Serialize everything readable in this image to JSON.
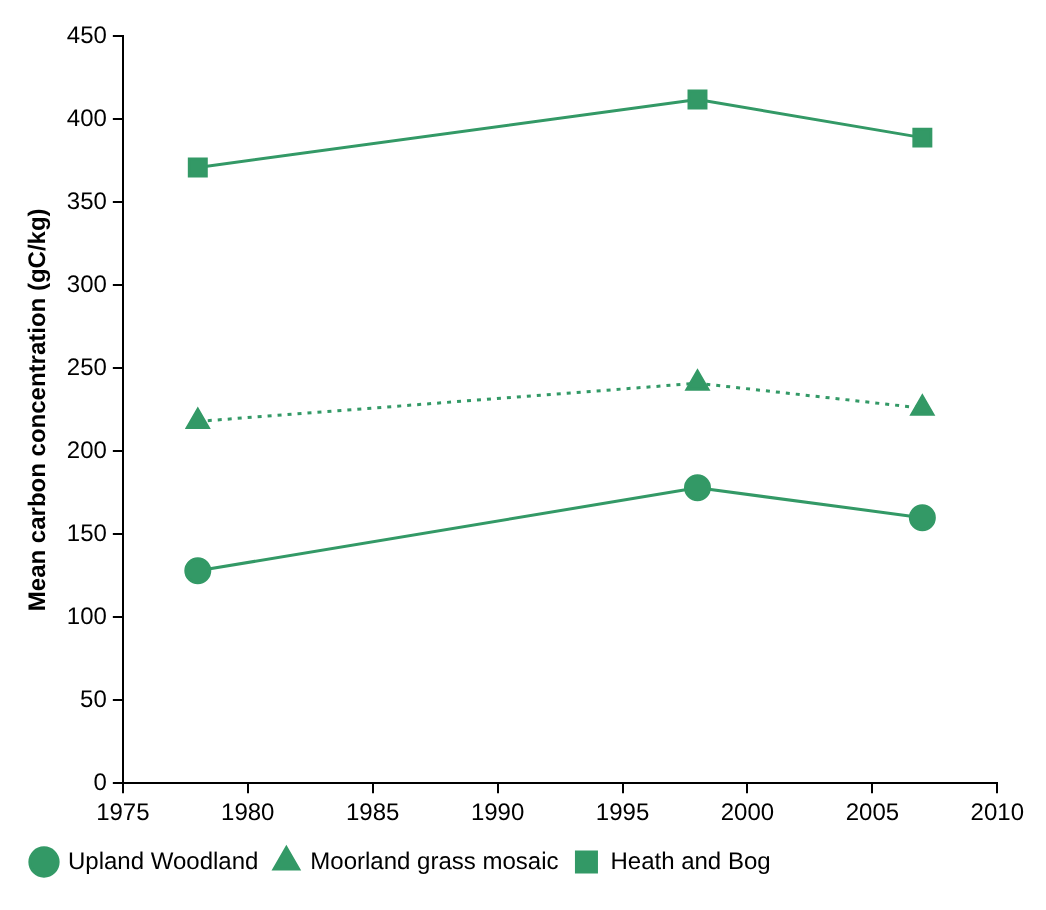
{
  "chart_data": {
    "type": "line",
    "ylabel": "Mean carbon concentration (gC/kg)",
    "x": [
      1978,
      1998,
      2007
    ],
    "series": [
      {
        "name": "Upland Woodland",
        "color": "#339966",
        "values": [
          128,
          178,
          160
        ],
        "marker": "circle",
        "line_style": "solid"
      },
      {
        "name": "Moorland grass mosaic",
        "color": "#339966",
        "values": [
          218,
          241,
          226
        ],
        "marker": "triangle",
        "line_style": "dotted"
      },
      {
        "name": "Heath and Bog",
        "color": "#339966",
        "values": [
          371,
          412,
          389
        ],
        "marker": "square",
        "line_style": "solid"
      }
    ],
    "xlim": [
      1975,
      2010
    ],
    "xticks": [
      1975,
      1980,
      1985,
      1990,
      1995,
      2000,
      2005,
      2010
    ],
    "ylim": [
      0,
      450
    ],
    "yticks": [
      0,
      50,
      100,
      150,
      200,
      250,
      300,
      350,
      400,
      450
    ],
    "grid": false,
    "legend": "bottom"
  }
}
